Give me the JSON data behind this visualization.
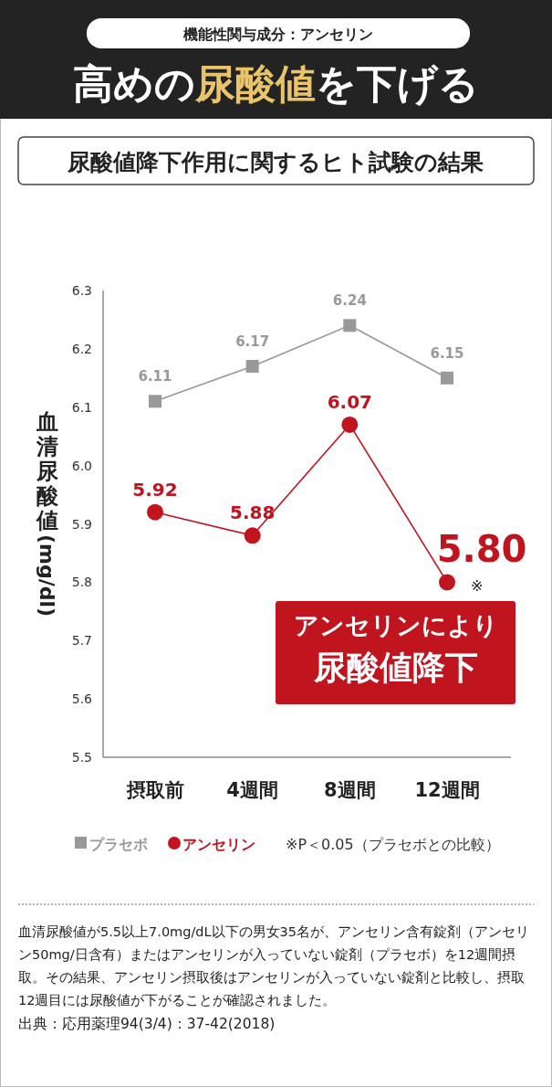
{
  "chart_data": {
    "type": "line",
    "title": "高めの尿酸値を下げる",
    "subtitle": "尿酸値降下作用に関するヒト試験の結果",
    "ylabel": "血清尿酸値(mg/dl)",
    "categories": [
      "摂取前",
      "4週間",
      "8週間",
      "12週間"
    ],
    "series": [
      {
        "name": "プラセボ",
        "color": "#999999",
        "values": [
          6.11,
          6.17,
          6.24,
          6.15
        ],
        "value_labels": [
          "6.11",
          "6.17",
          "6.24",
          "6.15"
        ],
        "marker": "square"
      },
      {
        "name": "アンセリン",
        "color": "#c0141f",
        "values": [
          5.92,
          5.88,
          6.07,
          5.8
        ],
        "value_labels": [
          "5.92",
          "5.88",
          "6.07",
          "5.80"
        ],
        "marker": "circle"
      }
    ],
    "ylim": [
      5.5,
      6.3
    ],
    "yticks": [
      5.5,
      5.6,
      5.7,
      5.8,
      5.9,
      {
        "value": 6,
        "label": "6.0"
      },
      6.1,
      6.2,
      6.3
    ],
    "legend": "bottom",
    "grid": false,
    "annotations": [
      "機能性関与成分：アンセリン",
      "アンセリンにより尿酸値降下",
      {
        "text": "※",
        "x": "12週間",
        "y": 5.8
      },
      "※P＜0.05（プラセボとの比較）",
      "血清尿酸値が5.5以上7.0mg/dL以下の男女35名が、アンセリン含有錠剤（アンセリン50mg/日含有）またはアンセリンが入っていない錠剤（プラセボ）を12週間摂取。その結果、アンセリン摂取後はアンセリンが入っていない錠剤と比較し、摂取12週目には尿酸値が下がることが確認されました。",
      "出典：応用薬理94(3/4)：37-42(2018)"
    ]
  }
}
